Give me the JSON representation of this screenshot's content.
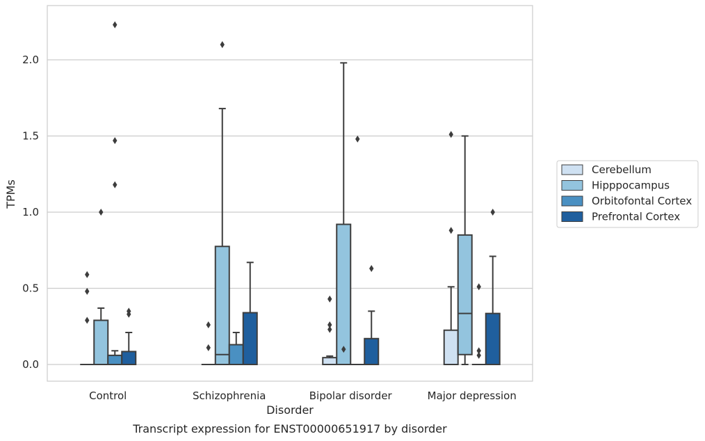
{
  "chart_data": {
    "type": "box",
    "caption": "Transcript expression for ENST00000651917 by disorder",
    "xlabel": "Disorder",
    "ylabel": "TPMs",
    "ylim": [
      -0.11,
      2.36
    ],
    "yticks": [
      0.0,
      0.5,
      1.0,
      1.5,
      2.0
    ],
    "ytick_labels": [
      "0.0",
      "0.5",
      "1.0",
      "1.5",
      "2.0"
    ],
    "grid": "horizontal",
    "legend_position": "right",
    "categories": [
      "Control",
      "Schizophrenia",
      "Bipolar disorder",
      "Major depression"
    ],
    "series": [
      {
        "name": "Cerebellum",
        "color": "#cfe1f2",
        "boxes": [
          {
            "whislo": 0,
            "q1": 0,
            "med": 0,
            "q3": 0,
            "whishi": 0,
            "fliers": [
              0.29,
              0.48,
              0.59
            ]
          },
          {
            "whislo": 0,
            "q1": 0,
            "med": 0,
            "q3": 0,
            "whishi": 0,
            "fliers": [
              0.11,
              0.26
            ]
          },
          {
            "whislo": 0,
            "q1": 0,
            "med": 0,
            "q3": 0.045,
            "whishi": 0.055,
            "fliers": [
              0.23,
              0.26,
              0.43
            ]
          },
          {
            "whislo": 0,
            "q1": 0,
            "med": 0,
            "q3": 0.225,
            "whishi": 0.51,
            "fliers": [
              0.88,
              1.51
            ]
          }
        ]
      },
      {
        "name": "Hipppocampus",
        "color": "#93c4de",
        "boxes": [
          {
            "whislo": 0,
            "q1": 0,
            "med": 0,
            "q3": 0.29,
            "whishi": 0.37,
            "fliers": [
              1.0
            ]
          },
          {
            "whislo": 0,
            "q1": 0,
            "med": 0.065,
            "q3": 0.775,
            "whishi": 1.68,
            "fliers": [
              2.1
            ]
          },
          {
            "whislo": 0,
            "q1": 0,
            "med": 0,
            "q3": 0.92,
            "whishi": 1.98,
            "fliers": [
              0.1
            ]
          },
          {
            "whislo": 0,
            "q1": 0.065,
            "med": 0.335,
            "q3": 0.85,
            "whishi": 1.5,
            "fliers": []
          }
        ]
      },
      {
        "name": "Orbitofontal Cortex",
        "color": "#4a90c2",
        "boxes": [
          {
            "whislo": 0,
            "q1": 0,
            "med": 0,
            "q3": 0.06,
            "whishi": 0.09,
            "fliers": [
              1.18,
              1.47,
              2.23
            ]
          },
          {
            "whislo": 0,
            "q1": 0,
            "med": 0,
            "q3": 0.13,
            "whishi": 0.21,
            "fliers": []
          },
          {
            "whislo": 0,
            "q1": 0,
            "med": 0,
            "q3": 0,
            "whishi": 0,
            "fliers": [
              1.48
            ]
          },
          {
            "whislo": 0,
            "q1": 0,
            "med": 0,
            "q3": 0,
            "whishi": 0,
            "fliers": [
              0.06,
              0.09,
              0.51
            ]
          }
        ]
      },
      {
        "name": "Prefrontal Cortex",
        "color": "#1f5f9e",
        "boxes": [
          {
            "whislo": 0,
            "q1": 0,
            "med": 0,
            "q3": 0.085,
            "whishi": 0.21,
            "fliers": [
              0.33,
              0.35
            ]
          },
          {
            "whislo": 0,
            "q1": 0,
            "med": 0,
            "q3": 0.34,
            "whishi": 0.67,
            "fliers": []
          },
          {
            "whislo": 0,
            "q1": 0,
            "med": 0,
            "q3": 0.17,
            "whishi": 0.35,
            "fliers": [
              0.63
            ]
          },
          {
            "whislo": 0,
            "q1": 0,
            "med": 0,
            "q3": 0.335,
            "whishi": 0.71,
            "fliers": [
              1.0
            ]
          }
        ]
      }
    ]
  }
}
